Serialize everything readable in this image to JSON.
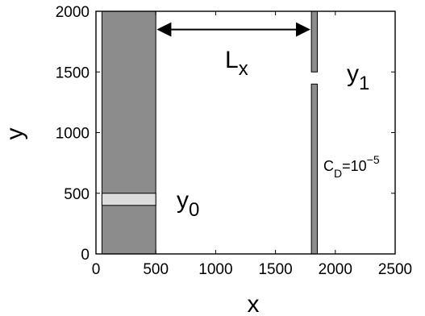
{
  "figure": {
    "colors": {
      "land": "#8c8c8c",
      "band": "#dcdcdc",
      "axis": "#000000",
      "arrow": "#000000"
    }
  },
  "chart_data": {
    "type": "diagram",
    "xlabel": "x",
    "ylabel": "y",
    "xlim": [
      0,
      2500
    ],
    "ylim": [
      0,
      2000
    ],
    "x_ticks": [
      "0",
      "500",
      "1000",
      "1500",
      "2000",
      "2500"
    ],
    "y_ticks": [
      "0",
      "500",
      "1000",
      "1500",
      "2000"
    ],
    "regions": [
      {
        "name": "left-block",
        "x": [
          50,
          500
        ],
        "y": [
          0,
          2000
        ],
        "color": "#8c8c8c"
      },
      {
        "name": "y0-band",
        "x": [
          50,
          500
        ],
        "y": [
          400,
          500
        ],
        "color": "#dcdcdc"
      },
      {
        "name": "barrier-upper",
        "x": [
          1800,
          1850
        ],
        "y": [
          1500,
          2000
        ],
        "color": "#8c8c8c"
      },
      {
        "name": "barrier-lower",
        "x": [
          1800,
          1850
        ],
        "y": [
          0,
          1400
        ],
        "color": "#8c8c8c"
      }
    ],
    "arrow": {
      "label": "L",
      "label_sub": "x",
      "x_from": 500,
      "x_to": 1800,
      "y": 1850
    },
    "annotations": {
      "y0": {
        "main": "y",
        "sub": "0"
      },
      "y1": {
        "main": "y",
        "sub": "1"
      },
      "cd": {
        "main": "C",
        "sub": "D",
        "mid": "=10",
        "sup": "−5"
      }
    }
  }
}
